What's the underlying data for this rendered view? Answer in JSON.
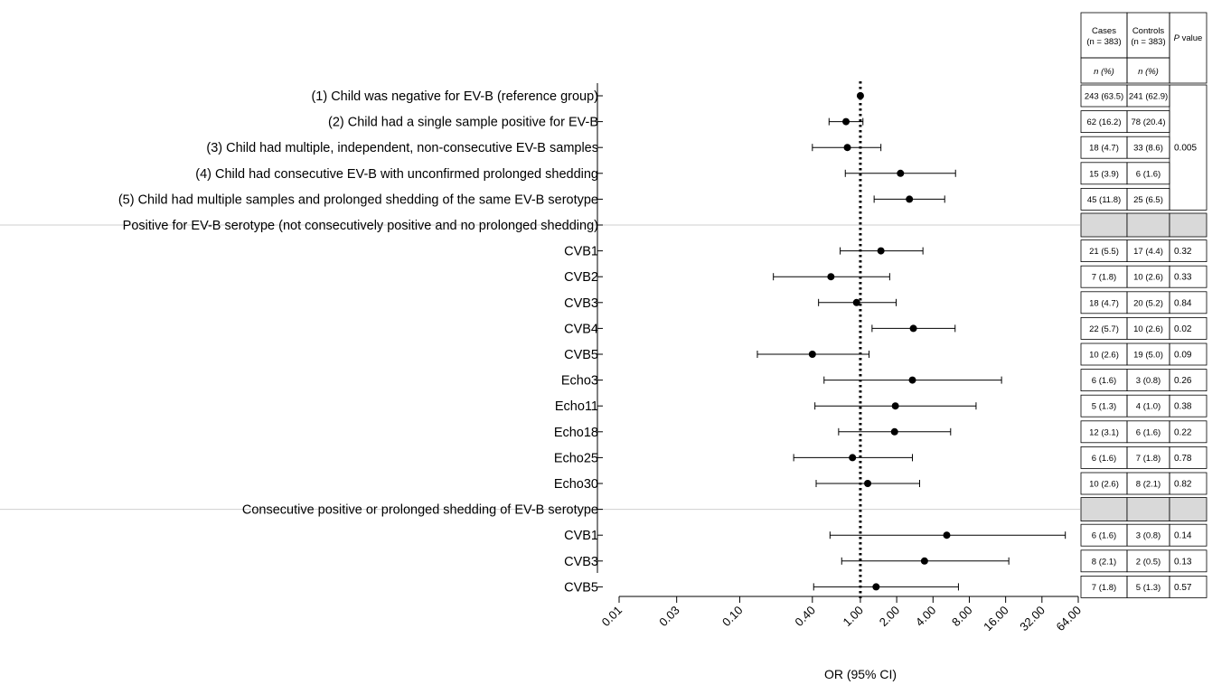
{
  "chart_data": {
    "type": "forest",
    "xlabel": "OR (95% CI)",
    "x_scale": "log2",
    "xlim": [
      0.01,
      64.0
    ],
    "xticks": [
      0.01,
      0.03,
      0.1,
      0.4,
      1.0,
      2.0,
      4.0,
      8.0,
      16.0,
      32.0,
      64.0
    ],
    "xtick_labels": [
      "0.01",
      "0.03",
      "0.10",
      "0.40",
      "1.00",
      "2.00",
      "4.00",
      "8.00",
      "16.00",
      "32.00",
      "64.00"
    ],
    "reference_line": 1.0,
    "table_headers": {
      "cases": "Cases",
      "cases_n": "(n = 383)",
      "controls": "Controls",
      "controls_n": "(n = 383)",
      "pvalue_p": "P",
      "pvalue_rest": " value",
      "n_pct": "n (%)"
    },
    "rows": [
      {
        "label": "(1) Child was negative for EV-B (reference group)",
        "align": "right",
        "or": 1.0,
        "lo": 1.0,
        "hi": 1.0,
        "cases": "243 (63.5)",
        "controls": "241 (62.9)"
      },
      {
        "label": "(2) Child had a single sample positive for EV-B",
        "align": "right",
        "or": 0.76,
        "lo": 0.55,
        "hi": 1.05,
        "cases": "62 (16.2)",
        "controls": "78 (20.4)"
      },
      {
        "label": "(3) Child had multiple, independent, non-consecutive EV-B samples",
        "align": "right",
        "or": 0.78,
        "lo": 0.4,
        "hi": 1.48,
        "cases": "18 (4.7)",
        "controls": "33 (8.6)"
      },
      {
        "label": "(4) Child had consecutive EV-B with unconfirmed prolonged shedding",
        "align": "right",
        "or": 2.15,
        "lo": 0.75,
        "hi": 6.15,
        "cases": "15 (3.9)",
        "controls": "6 (1.6)"
      },
      {
        "label": "(5) Child had multiple samples and prolonged shedding of the same EV-B serotype",
        "align": "right",
        "or": 2.55,
        "lo": 1.3,
        "hi": 5.0,
        "cases": "45 (11.8)",
        "controls": "25 (6.5)"
      },
      {
        "label": "Positive for EV-B serotype (not consecutively positive and no prolonged shedding)",
        "align": "right",
        "header": true
      },
      {
        "label": "CVB1",
        "align": "right",
        "or": 1.48,
        "lo": 0.68,
        "hi": 3.3,
        "cases": "21 (5.5)",
        "controls": "17 (4.4)",
        "p": "0.32"
      },
      {
        "label": "CVB2",
        "align": "right",
        "or": 0.57,
        "lo": 0.19,
        "hi": 1.75,
        "cases": "7 (1.8)",
        "controls": "10 (2.6)",
        "p": "0.33"
      },
      {
        "label": "CVB3",
        "align": "right",
        "or": 0.93,
        "lo": 0.45,
        "hi": 1.98,
        "cases": "18 (4.7)",
        "controls": "20 (5.2)",
        "p": "0.84"
      },
      {
        "label": "CVB4",
        "align": "right",
        "or": 2.75,
        "lo": 1.25,
        "hi": 6.1,
        "cases": "22 (5.7)",
        "controls": "10 (2.6)",
        "p": "0.02"
      },
      {
        "label": "CVB5",
        "align": "right",
        "or": 0.4,
        "lo": 0.14,
        "hi": 1.18,
        "cases": "10 (2.6)",
        "controls": "19 (5.0)",
        "p": "0.09"
      },
      {
        "label": "Echo3",
        "align": "right",
        "or": 2.7,
        "lo": 0.5,
        "hi": 14.8,
        "cases": "6 (1.6)",
        "controls": "3 (0.8)",
        "p": "0.26"
      },
      {
        "label": "Echo11",
        "align": "right",
        "or": 1.95,
        "lo": 0.42,
        "hi": 9.1,
        "cases": "5 (1.3)",
        "controls": "4 (1.0)",
        "p": "0.38"
      },
      {
        "label": "Echo18",
        "align": "right",
        "or": 1.92,
        "lo": 0.66,
        "hi": 5.6,
        "cases": "12 (3.1)",
        "controls": "6 (1.6)",
        "p": "0.22"
      },
      {
        "label": "Echo25",
        "align": "right",
        "or": 0.86,
        "lo": 0.28,
        "hi": 2.7,
        "cases": "6 (1.6)",
        "controls": "7 (1.8)",
        "p": "0.78"
      },
      {
        "label": "Echo30",
        "align": "right",
        "or": 1.15,
        "lo": 0.43,
        "hi": 3.1,
        "cases": "10 (2.6)",
        "controls": "8 (2.1)",
        "p": "0.82"
      },
      {
        "label": "Consecutive positive or prolonged shedding of EV-B serotype",
        "align": "right",
        "header": true
      },
      {
        "label": "CVB1",
        "align": "right",
        "or": 5.2,
        "lo": 0.56,
        "hi": 50.0,
        "cases": "6 (1.6)",
        "controls": "3 (0.8)",
        "p": "0.14"
      },
      {
        "label": "CVB3",
        "align": "right",
        "or": 3.4,
        "lo": 0.7,
        "hi": 17.0,
        "cases": "8 (2.1)",
        "controls": "2 (0.5)",
        "p": "0.13"
      },
      {
        "label": "CVB5",
        "align": "right",
        "or": 1.35,
        "lo": 0.41,
        "hi": 6.5,
        "cases": "7 (1.8)",
        "controls": "5 (1.3)",
        "p": "0.57"
      }
    ],
    "group_p_value": "0.005"
  }
}
